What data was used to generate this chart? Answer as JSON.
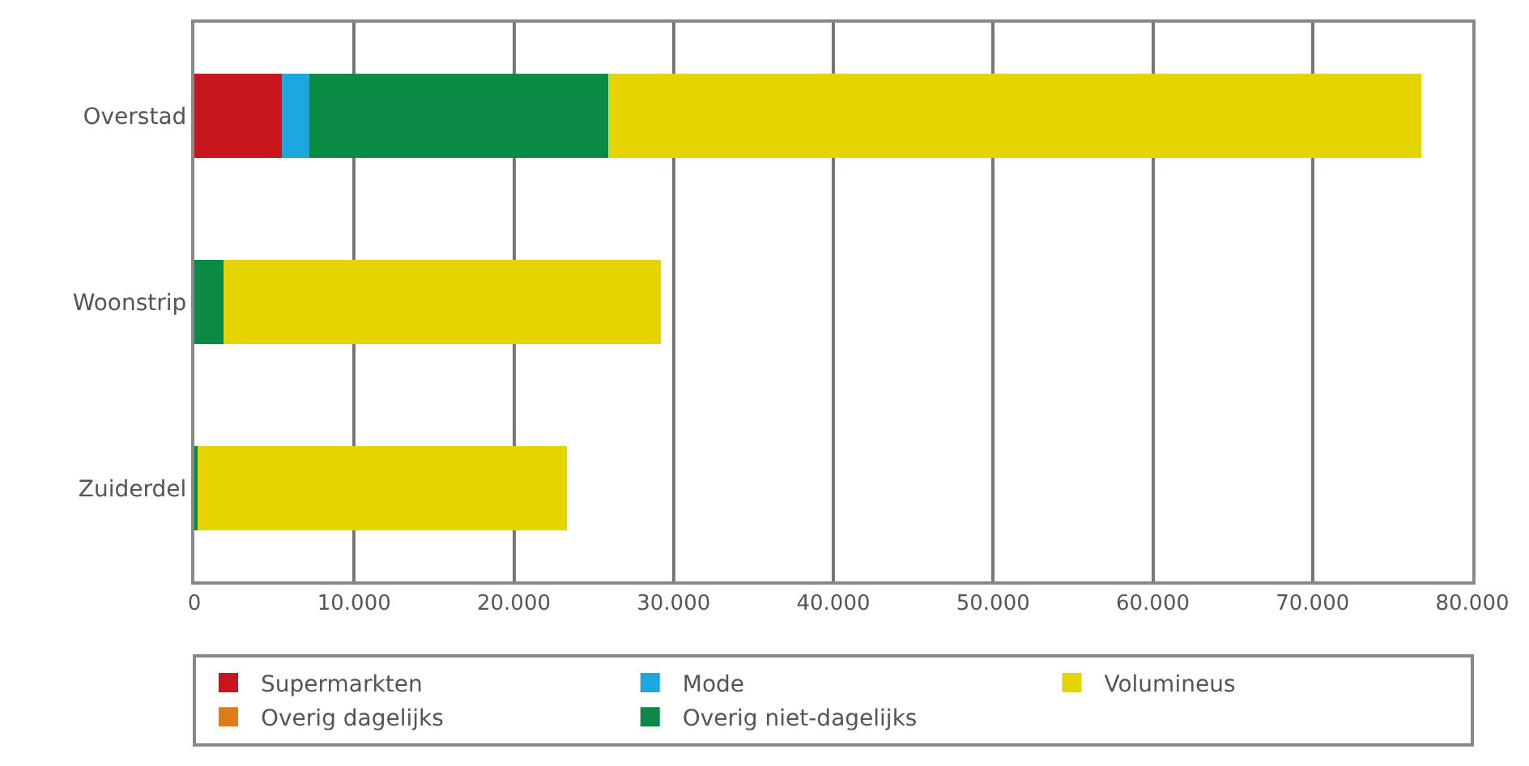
{
  "chart_data": {
    "type": "bar",
    "orientation": "horizontal",
    "stacked": true,
    "categories": [
      "Overstad",
      "Woonstrip",
      "Zuiderdel"
    ],
    "series": [
      {
        "name": "Supermarkten",
        "color": "#c8161d",
        "values": [
          5500,
          0,
          0
        ]
      },
      {
        "name": "Mode",
        "color": "#1ea6df",
        "values": [
          1700,
          0,
          0
        ]
      },
      {
        "name": "Overig dagelijks",
        "color": "#e07b1a",
        "values": [
          0,
          0,
          0
        ]
      },
      {
        "name": "Overig niet-dagelijks",
        "color": "#0a8a45",
        "values": [
          18700,
          1800,
          200
        ]
      },
      {
        "name": "Volumineus",
        "color": "#e6d400",
        "values": [
          50900,
          27400,
          23100
        ]
      }
    ],
    "xlim": [
      0,
      80000
    ],
    "xticks": [
      {
        "value": 0,
        "label": "0"
      },
      {
        "value": 10000,
        "label": "10.000"
      },
      {
        "value": 20000,
        "label": "20.000"
      },
      {
        "value": 30000,
        "label": "30.000"
      },
      {
        "value": 40000,
        "label": "40.000"
      },
      {
        "value": 50000,
        "label": "50.000"
      },
      {
        "value": 60000,
        "label": "60.000"
      },
      {
        "value": 70000,
        "label": "70.000"
      },
      {
        "value": 80000,
        "label": "80.000"
      }
    ],
    "grid": "x",
    "legend": "bottom"
  }
}
